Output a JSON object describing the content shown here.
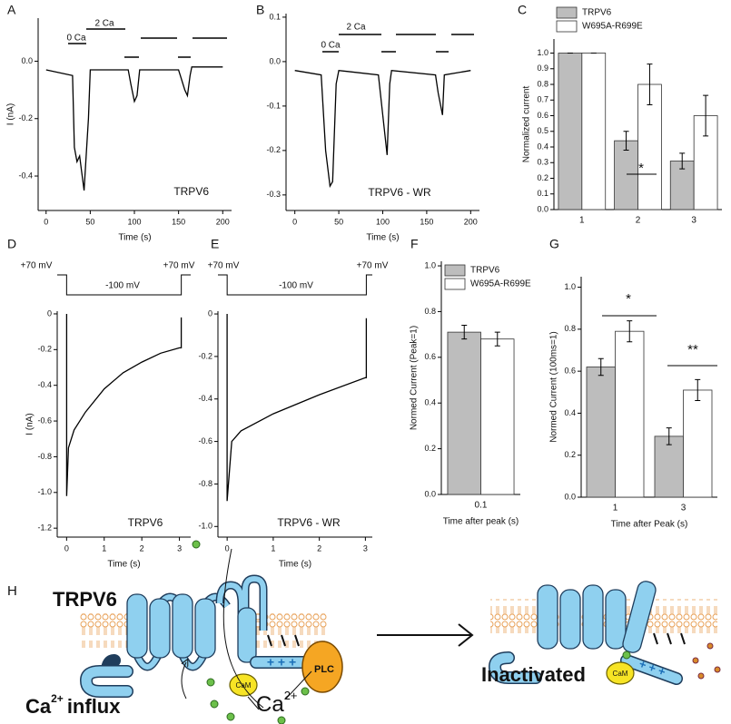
{
  "chart_data": [
    {
      "panel": "A",
      "type": "line",
      "color": "#000000",
      "x": [
        0,
        30,
        32,
        35,
        38,
        40,
        43,
        45,
        48,
        50,
        90,
        93,
        96,
        100,
        103,
        106,
        150,
        152,
        157,
        160,
        163,
        165,
        200
      ],
      "values": [
        -0.03,
        -0.05,
        -0.3,
        -0.35,
        -0.33,
        -0.38,
        -0.45,
        -0.35,
        -0.2,
        -0.03,
        -0.03,
        -0.03,
        -0.08,
        -0.14,
        -0.12,
        -0.03,
        -0.03,
        -0.05,
        -0.1,
        -0.12,
        -0.05,
        -0.02,
        -0.02
      ],
      "xlim": [
        -9,
        210
      ],
      "ylim": [
        -0.52,
        0.15
      ],
      "xticks": [
        0,
        50,
        100,
        150,
        200
      ],
      "yticks": [
        {
          "value": 0,
          "label": "0.0"
        },
        -0.2,
        -0.4
      ],
      "x_label": "Time (s)",
      "y_label": "I (nA)",
      "solution_labels": [
        "0 Ca",
        "2 Ca"
      ],
      "trace_label": "TRPV6"
    },
    {
      "panel": "B",
      "type": "line",
      "color": "#000000",
      "x": [
        0,
        30,
        35,
        40,
        43,
        47,
        50,
        95,
        100,
        105,
        108,
        110,
        160,
        163,
        168,
        170,
        200
      ],
      "values": [
        -0.02,
        -0.03,
        -0.2,
        -0.28,
        -0.27,
        -0.05,
        -0.02,
        -0.03,
        -0.12,
        -0.21,
        -0.05,
        -0.02,
        -0.03,
        -0.07,
        -0.12,
        -0.03,
        -0.02
      ],
      "xlim": [
        -10,
        210
      ],
      "ylim": [
        -0.335,
        0.108
      ],
      "xticks": [
        0,
        50,
        100,
        150,
        200
      ],
      "yticks": [
        0.1,
        {
          "value": 0,
          "label": "0.0"
        },
        -0.1,
        -0.2,
        -0.3
      ],
      "x_label": "Time (s)",
      "solution_labels": [
        "0 Ca",
        "2 Ca"
      ],
      "trace_label": "TRPV6 - WR"
    },
    {
      "panel": "C",
      "type": "bar",
      "categories": [
        "1",
        "2",
        "3"
      ],
      "series": [
        {
          "name": "TRPV6",
          "color": "#bdbdbd",
          "values": [
            1.0,
            0.44,
            0.31
          ],
          "errors": [
            0,
            0.06,
            0.05
          ]
        },
        {
          "name": "W695A-R699E",
          "color": "#ffffff",
          "values": [
            1.0,
            0.8,
            0.6
          ],
          "errors": [
            0,
            0.13,
            0.13
          ]
        }
      ],
      "ylim": [
        0,
        1.09
      ],
      "yticks": [
        {
          "value": 0,
          "label": "0.0"
        },
        0.1,
        0.2,
        0.3,
        0.4,
        0.5,
        0.6,
        0.7,
        0.8,
        0.9,
        {
          "value": 1,
          "label": "1.0"
        }
      ],
      "y_label": "Normalized current",
      "annotations": [
        "*"
      ]
    },
    {
      "panel": "D",
      "type": "line",
      "color": "#000000",
      "x": [
        0,
        0,
        0.05,
        0.2,
        0.5,
        1,
        1.5,
        2,
        2.5,
        3,
        3.05,
        3.05
      ],
      "values": [
        0,
        -1.02,
        -0.75,
        -0.65,
        -0.55,
        -0.42,
        -0.33,
        -0.27,
        -0.22,
        -0.19,
        -0.19,
        -0.02
      ],
      "xlim": [
        -0.25,
        3.3
      ],
      "ylim": [
        -1.25,
        0.015
      ],
      "xticks": [
        0,
        1,
        2,
        3
      ],
      "yticks": [
        0,
        -0.2,
        -0.4,
        -0.6,
        -0.8,
        {
          "value": -1,
          "label": "-1.0"
        },
        -1.2
      ],
      "x_label": "Time (s)",
      "y_label": "I (nA)",
      "protocol_labels": [
        "+70 mV",
        "-100 mV",
        "+70 mV"
      ],
      "trace_label": "TRPV6"
    },
    {
      "panel": "E",
      "type": "line",
      "color": "#000000",
      "x": [
        0,
        0,
        0.1,
        0.3,
        1,
        2,
        3,
        3.02,
        3.02
      ],
      "values": [
        0,
        -0.88,
        -0.6,
        -0.55,
        -0.47,
        -0.38,
        -0.3,
        -0.3,
        -0.02
      ],
      "xlim": [
        -0.2,
        3.15
      ],
      "ylim": [
        -1.05,
        0.013
      ],
      "xticks": [
        0,
        1,
        2,
        3
      ],
      "yticks": [
        0,
        -0.2,
        -0.4,
        -0.6,
        -0.8,
        {
          "value": -1,
          "label": "-1.0"
        }
      ],
      "x_label": "Time (s)",
      "protocol_labels": [
        "+70 mV",
        "-100 mV",
        "+70 mV"
      ],
      "trace_label": "TRPV6 - WR"
    },
    {
      "panel": "F",
      "type": "bar",
      "categories": [
        "0.1"
      ],
      "series": [
        {
          "name": "TRPV6",
          "color": "#bdbdbd",
          "values": [
            0.71
          ],
          "errors": [
            0.03
          ]
        },
        {
          "name": "W695A-R699E",
          "color": "#ffffff",
          "values": [
            0.68
          ],
          "errors": [
            0.03
          ]
        }
      ],
      "ylim": [
        0,
        1.02
      ],
      "yticks": [
        {
          "value": 0,
          "label": "0.0"
        },
        0.2,
        0.4,
        0.6,
        0.8,
        {
          "value": 1,
          "label": "1.0"
        }
      ],
      "x_label": "Time after peak (s)",
      "y_label": "Normed Current (Peak=1)"
    },
    {
      "panel": "G",
      "type": "bar",
      "categories": [
        "1",
        "3"
      ],
      "series": [
        {
          "color": "#bdbdbd",
          "values": [
            0.62,
            0.29
          ],
          "errors": [
            0.04,
            0.04
          ]
        },
        {
          "color": "#ffffff",
          "values": [
            0.79,
            0.51
          ],
          "errors": [
            0.05,
            0.05
          ]
        }
      ],
      "ylim": [
        0,
        1.05
      ],
      "yticks": [
        {
          "value": 0,
          "label": "0.0"
        },
        0.2,
        0.4,
        0.6,
        0.8,
        {
          "value": 1,
          "label": "1.0"
        }
      ],
      "x_label": "Time after Peak (s)",
      "y_label": "Normed Current (100ms=1)",
      "annotations": [
        "*",
        "**"
      ]
    }
  ],
  "diagram": {
    "panel": "H",
    "title": "TRPV6",
    "ion": "Ca",
    "charge": "2+",
    "influx": "influx",
    "cam": "CaM",
    "plc": "PLC",
    "state": "Inactivated"
  }
}
